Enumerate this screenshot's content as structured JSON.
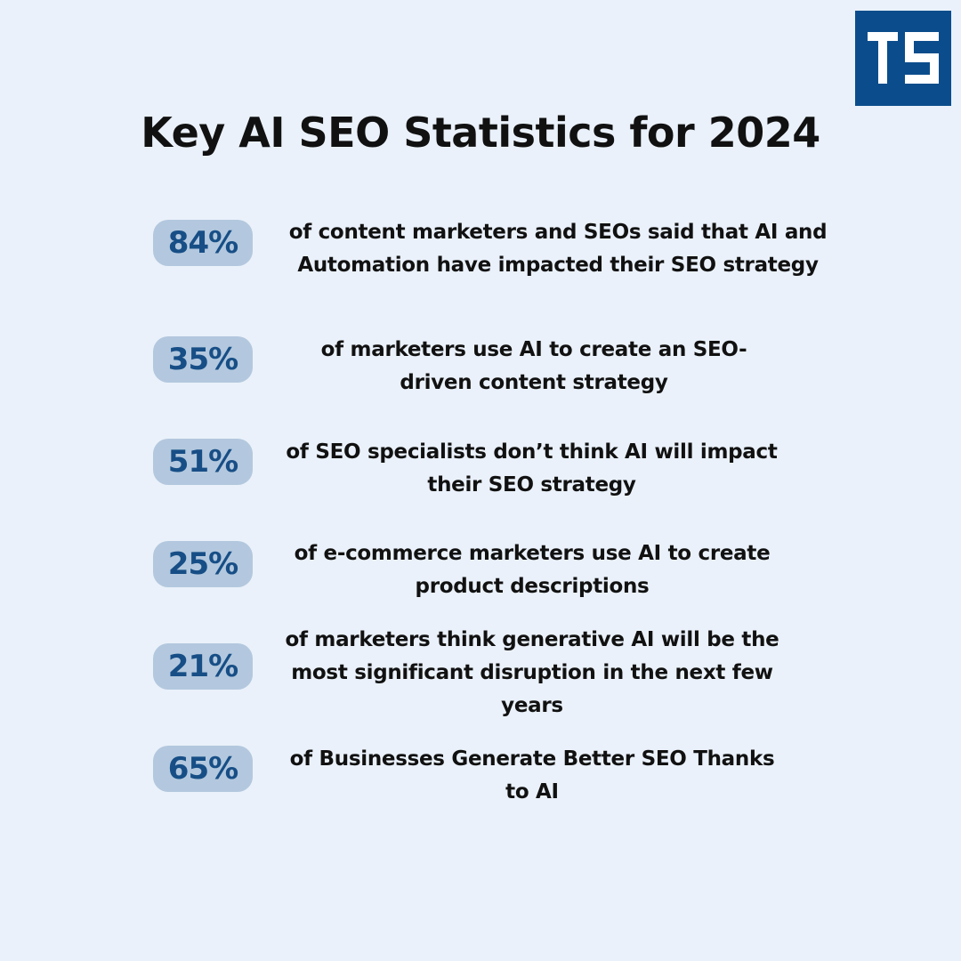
{
  "header": {
    "logo_text": "TS",
    "title": "Key AI SEO Statistics for 2024"
  },
  "colors": {
    "background": "#eaf1fa",
    "logo_bg": "#0b4d8c",
    "badge_bg": "#b3c8de",
    "badge_text": "#174e86",
    "body_text": "#111111"
  },
  "stats": [
    {
      "value": "84%",
      "text": "of content marketers and SEOs said that AI and Automation have impacted their SEO strategy"
    },
    {
      "value": "35%",
      "text": "of marketers use AI to create an SEO-driven content strategy"
    },
    {
      "value": "51%",
      "text": "of SEO specialists don’t think AI will impact their SEO strategy"
    },
    {
      "value": "25%",
      "text": "of e-commerce marketers use AI to create product descriptions"
    },
    {
      "value": "21%",
      "text": "of marketers think generative AI will be the most significant disruption in the next few years"
    },
    {
      "value": "65%",
      "text": "of Businesses Generate Better SEO Thanks to AI"
    }
  ]
}
